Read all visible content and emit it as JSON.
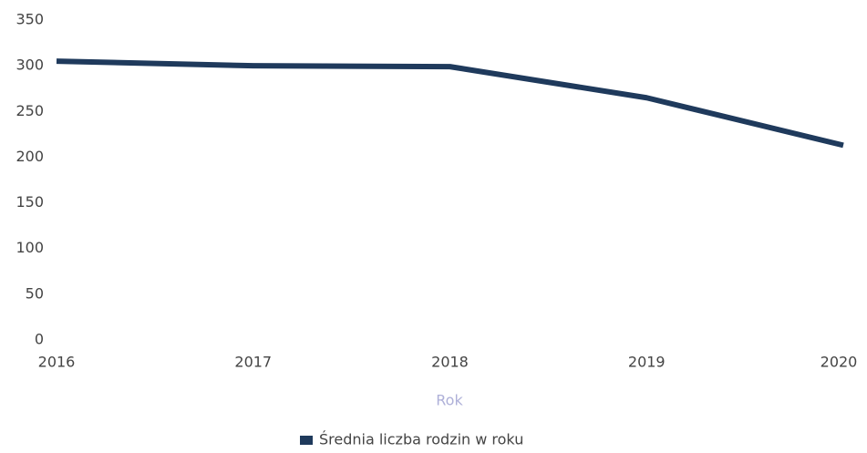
{
  "chart_data": {
    "type": "line",
    "categories": [
      "2016",
      "2017",
      "2018",
      "2019",
      "2020"
    ],
    "series": [
      {
        "name": "Średnia liczba rodzin w roku",
        "color": "#1f3a5c",
        "values": [
          305,
          300,
          299,
          265,
          213
        ]
      }
    ],
    "xlabel": "Rok",
    "ylim": [
      0,
      350
    ],
    "yticks": [
      0,
      50,
      100,
      150,
      200,
      250,
      300,
      350
    ],
    "grid": false,
    "legend": "bottom"
  }
}
